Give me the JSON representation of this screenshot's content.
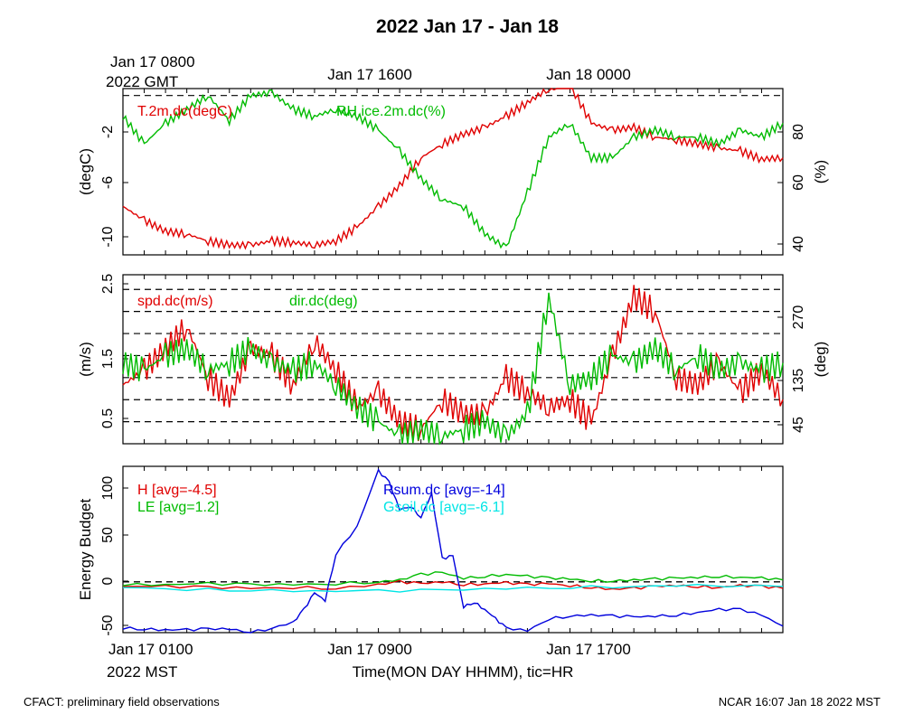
{
  "title": "2022 Jan 17 - Jan 18",
  "top_axis": {
    "first_label": [
      "Jan 17 0800",
      "2022 GMT"
    ],
    "labels": [
      "Jan 17 1600",
      "Jan 18 0000"
    ]
  },
  "bottom_axis": {
    "first_label": [
      "Jan 17 0100",
      "2022 MST"
    ],
    "labels": [
      "Jan 17 0900",
      "Jan 17 1700"
    ],
    "xlabel": "Time(MON DAY HHMM), tic=HR"
  },
  "footer": {
    "left": "CFACT: preliminary field observations",
    "right": "NCAR 16:07 Jan 18 2022 MST"
  },
  "colors": {
    "red": "#e00000",
    "green": "#00bb00",
    "blue": "#0000dd",
    "cyan": "#00e5e5"
  },
  "chart_data": [
    {
      "type": "line",
      "panel": "temperature-humidity",
      "xlim_hours_mst": [
        1,
        32
      ],
      "left_axis": {
        "label": "(degC)",
        "ticks": [
          "-2",
          "-6",
          "-10"
        ],
        "ylim": [
          -11.5,
          0.5
        ]
      },
      "right_axis": {
        "label": "(%)",
        "ticks": [
          "80",
          "60",
          "40"
        ],
        "ylim": [
          38,
          94
        ]
      },
      "series": [
        {
          "name": "T.2m.dc(degC)",
          "axis": "left",
          "color": "red",
          "x": [
            1,
            2,
            3,
            4,
            5,
            6,
            7,
            8,
            9,
            10,
            11,
            12,
            13,
            14,
            15,
            16,
            17,
            18,
            19,
            20,
            21,
            22,
            23,
            24,
            25,
            26,
            27,
            28,
            29,
            30,
            31,
            32
          ],
          "values": [
            -8,
            -9,
            -9.8,
            -10,
            -10.5,
            -10.8,
            -10.8,
            -10.5,
            -10.6,
            -10.8,
            -10.5,
            -9.5,
            -8,
            -6.5,
            -4.5,
            -3.5,
            -2.8,
            -2.3,
            -1.5,
            -0.5,
            0.5,
            0.8,
            -2,
            -2.5,
            -2.3,
            -3,
            -3.2,
            -3.5,
            -3.8,
            -4,
            -4.6,
            -4.5
          ]
        },
        {
          "name": "RH.ice.2m.dc(%)",
          "axis": "left",
          "color": "green",
          "x": [
            1,
            2,
            3,
            4,
            5,
            6,
            7,
            8,
            9,
            10,
            11,
            12,
            13,
            14,
            15,
            16,
            17,
            18,
            19,
            20,
            21,
            22,
            23,
            24,
            25,
            26,
            27,
            28,
            29,
            30,
            31,
            32
          ],
          "values": [
            -1.5,
            -3.5,
            -2,
            -1,
            0,
            -1.8,
            0,
            0.2,
            -1,
            -1.5,
            -1,
            -1.5,
            -2.5,
            -4,
            -6,
            -7.5,
            -8,
            -10,
            -11,
            -7,
            -3,
            -2,
            -4.5,
            -4.5,
            -3,
            -2.5,
            -3,
            -3,
            -3.5,
            -2.5,
            -3,
            -2
          ]
        }
      ]
    },
    {
      "type": "line",
      "panel": "wind",
      "xlim_hours_mst": [
        1,
        32
      ],
      "left_axis": {
        "label": "(m/s)",
        "ticks": [
          "2.5",
          "1.5",
          "0.5"
        ],
        "ylim": [
          0.2,
          2.5
        ]
      },
      "right_axis": {
        "label": "(deg)",
        "ticks": [
          "270",
          "135",
          "45"
        ]
      },
      "series": [
        {
          "name": "spd.dc(m/s)",
          "axis": "left",
          "color": "red",
          "x": [
            1,
            2,
            3,
            4,
            5,
            6,
            7,
            8,
            9,
            10,
            11,
            12,
            13,
            14,
            15,
            16,
            17,
            18,
            19,
            20,
            21,
            22,
            23,
            24,
            25,
            26,
            27,
            28,
            29,
            30,
            31,
            32
          ],
          "values": [
            1,
            1.2,
            1.5,
            1.8,
            1.1,
            0.8,
            1.5,
            1.4,
            1,
            1.6,
            1.2,
            0.7,
            0.9,
            0.5,
            0.4,
            0.8,
            0.6,
            0.6,
            1.1,
            0.9,
            0.7,
            0.8,
            0.5,
            1.4,
            2.2,
            2,
            1.1,
            1,
            1.3,
            0.9,
            1.2,
            0.8
          ]
        },
        {
          "name": "dir.dc(deg)",
          "axis": "left",
          "color": "green",
          "x": [
            1,
            2,
            3,
            4,
            5,
            6,
            7,
            8,
            9,
            10,
            11,
            12,
            13,
            14,
            15,
            16,
            17,
            18,
            19,
            20,
            21,
            22,
            23,
            24,
            25,
            26,
            27,
            28,
            29,
            30,
            31,
            32
          ],
          "values": [
            1.3,
            1.2,
            1.4,
            1.5,
            1.2,
            1.3,
            1.5,
            1.3,
            1.2,
            1.3,
            1,
            0.7,
            0.5,
            0.3,
            0.4,
            0.3,
            0.4,
            0.5,
            0.3,
            0.6,
            2.2,
            1,
            1.1,
            1.4,
            1.3,
            1.5,
            1.2,
            1.4,
            1.2,
            1.3,
            1.2,
            1.3
          ]
        }
      ],
      "dashed_lines_left_units": [
        2.3,
        2.0,
        1.7,
        1.4,
        1.1,
        0.8,
        0.5
      ]
    },
    {
      "type": "line",
      "panel": "energy-budget",
      "xlim_hours_mst": [
        1,
        32
      ],
      "left_axis": {
        "label": "Energy Budget",
        "ticks": [
          "100",
          "50",
          "0",
          "-50"
        ],
        "ylim": [
          -55,
          125
        ]
      },
      "series": [
        {
          "name": "H [avg=-4.5]",
          "color": "red",
          "x": [
            1,
            3,
            5,
            7,
            9,
            11,
            13,
            14,
            15,
            16,
            17,
            18,
            19,
            20,
            21,
            22,
            23,
            24,
            25,
            26,
            27,
            28,
            29,
            30,
            31,
            32
          ],
          "values": [
            -5,
            -5,
            -6,
            -7,
            -6,
            -7,
            -3,
            0,
            -2,
            0,
            -3,
            -2,
            -1,
            -3,
            -2,
            -4,
            -6,
            -8,
            -7,
            -5,
            -4,
            -5,
            -6,
            -4,
            -5,
            -7
          ]
        },
        {
          "name": "LE [avg=1.2]",
          "color": "green",
          "x": [
            1,
            3,
            5,
            7,
            9,
            11,
            13,
            14,
            15,
            16,
            17,
            18,
            19,
            20,
            21,
            22,
            23,
            24,
            25,
            26,
            27,
            28,
            29,
            30,
            31,
            32
          ],
          "values": [
            -3,
            -3,
            -2,
            -3,
            -3,
            -2,
            0,
            2,
            8,
            10,
            4,
            6,
            8,
            6,
            4,
            3,
            1,
            1,
            2,
            3,
            4,
            5,
            6,
            5,
            4,
            2
          ]
        },
        {
          "name": "Rsum.dc [avg=-14]",
          "color": "blue",
          "x": [
            1,
            2,
            3,
            4,
            5,
            6,
            7,
            8,
            9,
            9.5,
            10,
            10.5,
            11,
            12,
            13,
            13.5,
            14,
            14.5,
            15,
            15.5,
            16,
            16.5,
            17,
            17.5,
            18,
            18.5,
            19,
            20,
            21,
            22,
            23,
            24,
            25,
            26,
            27,
            28,
            29,
            30,
            31,
            32
          ],
          "values": [
            -50,
            -51,
            -52,
            -52,
            -51,
            -51,
            -55,
            -50,
            -44,
            -30,
            -12,
            -20,
            30,
            60,
            120,
            108,
            78,
            82,
            70,
            95,
            25,
            28,
            -27,
            -22,
            -30,
            -40,
            -50,
            -53,
            -40,
            -37,
            -36,
            -37,
            -38,
            -37,
            -36,
            -33,
            -30,
            -30,
            -36,
            -48
          ]
        },
        {
          "name": "Gsoil.dc [avg=-6.1]",
          "color": "cyan",
          "x": [
            1,
            4,
            7,
            10,
            13,
            16,
            19,
            22,
            25,
            28,
            32
          ],
          "values": [
            -6,
            -8,
            -9,
            -10,
            -10,
            -9,
            -7,
            -6,
            -5,
            -4,
            -5
          ]
        }
      ],
      "dashed_line_value": 0
    }
  ]
}
